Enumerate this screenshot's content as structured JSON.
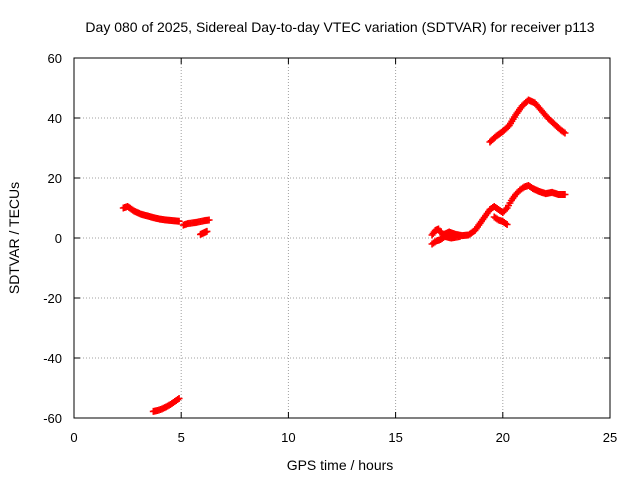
{
  "chart_data": {
    "type": "scatter",
    "title": "Day 080 of 2025, Sidereal Day-to-day VTEC variation (SDTVAR) for receiver p113",
    "xlabel": "GPS time / hours",
    "ylabel": "SDTVAR / TECUs",
    "xlim": [
      0,
      25
    ],
    "ylim": [
      -60,
      60
    ],
    "xticks": [
      0,
      5,
      10,
      15,
      20,
      25
    ],
    "yticks": [
      -60,
      -40,
      -20,
      0,
      20,
      40,
      60
    ],
    "grid": true,
    "marker": "+",
    "series": [
      {
        "name": "segment-a",
        "color": "#ff0000",
        "x": [
          2.3,
          2.5,
          2.8,
          3.1,
          3.4,
          3.7,
          4.0,
          4.3,
          4.6,
          4.9
        ],
        "y": [
          10.0,
          10.5,
          9.0,
          8.0,
          7.4,
          6.8,
          6.3,
          6.0,
          5.8,
          5.6
        ]
      },
      {
        "name": "segment-b",
        "color": "#ff0000",
        "x": [
          5.1,
          5.3,
          5.5,
          5.7,
          5.9,
          6.1,
          6.3
        ],
        "y": [
          4.3,
          4.8,
          5.0,
          5.2,
          5.5,
          5.8,
          6.0
        ]
      },
      {
        "name": "segment-c",
        "color": "#ff0000",
        "x": [
          5.9,
          6.05,
          6.2
        ],
        "y": [
          1.2,
          1.7,
          2.2
        ]
      },
      {
        "name": "segment-d",
        "color": "#ff0000",
        "x": [
          3.7,
          3.9,
          4.1,
          4.3,
          4.5,
          4.7,
          4.9
        ],
        "y": [
          -57.8,
          -57.5,
          -57.0,
          -56.3,
          -55.5,
          -54.5,
          -53.5
        ]
      },
      {
        "name": "segment-e",
        "color": "#ff0000",
        "x": [
          16.7,
          16.85,
          17.0,
          17.2,
          17.5,
          17.8,
          18.1,
          18.4,
          18.7,
          19.0,
          19.2,
          19.4,
          19.6,
          19.8,
          20.0,
          20.2,
          20.4,
          20.6,
          20.8,
          21.0,
          21.2,
          21.4,
          21.7,
          22.0,
          22.3,
          22.6,
          22.9
        ],
        "y": [
          1.0,
          2.5,
          3.0,
          1.0,
          2.0,
          1.2,
          0.8,
          1.0,
          2.5,
          5.5,
          7.5,
          9.5,
          10.5,
          9.5,
          8.5,
          10.0,
          12.5,
          14.5,
          16.0,
          17.0,
          17.5,
          16.5,
          15.5,
          14.8,
          15.2,
          14.5,
          14.5
        ]
      },
      {
        "name": "segment-f",
        "color": "#ff0000",
        "x": [
          16.7,
          16.9,
          17.1,
          17.3,
          17.6,
          18.0
        ],
        "y": [
          -2.0,
          -1.0,
          -0.5,
          0.5,
          0.0,
          0.5
        ]
      },
      {
        "name": "segment-g",
        "color": "#ff0000",
        "x": [
          19.6,
          19.8,
          20.0,
          20.2
        ],
        "y": [
          7.0,
          6.0,
          5.5,
          4.5
        ]
      },
      {
        "name": "segment-h",
        "color": "#ff0000",
        "x": [
          19.4,
          19.7,
          20.0,
          20.3,
          20.6,
          20.9,
          21.2,
          21.5,
          21.8,
          22.1,
          22.4,
          22.7,
          22.9
        ],
        "y": [
          32.0,
          34.0,
          35.5,
          37.5,
          41.0,
          44.0,
          46.0,
          45.0,
          42.5,
          40.0,
          38.0,
          36.0,
          35.0
        ]
      }
    ]
  }
}
